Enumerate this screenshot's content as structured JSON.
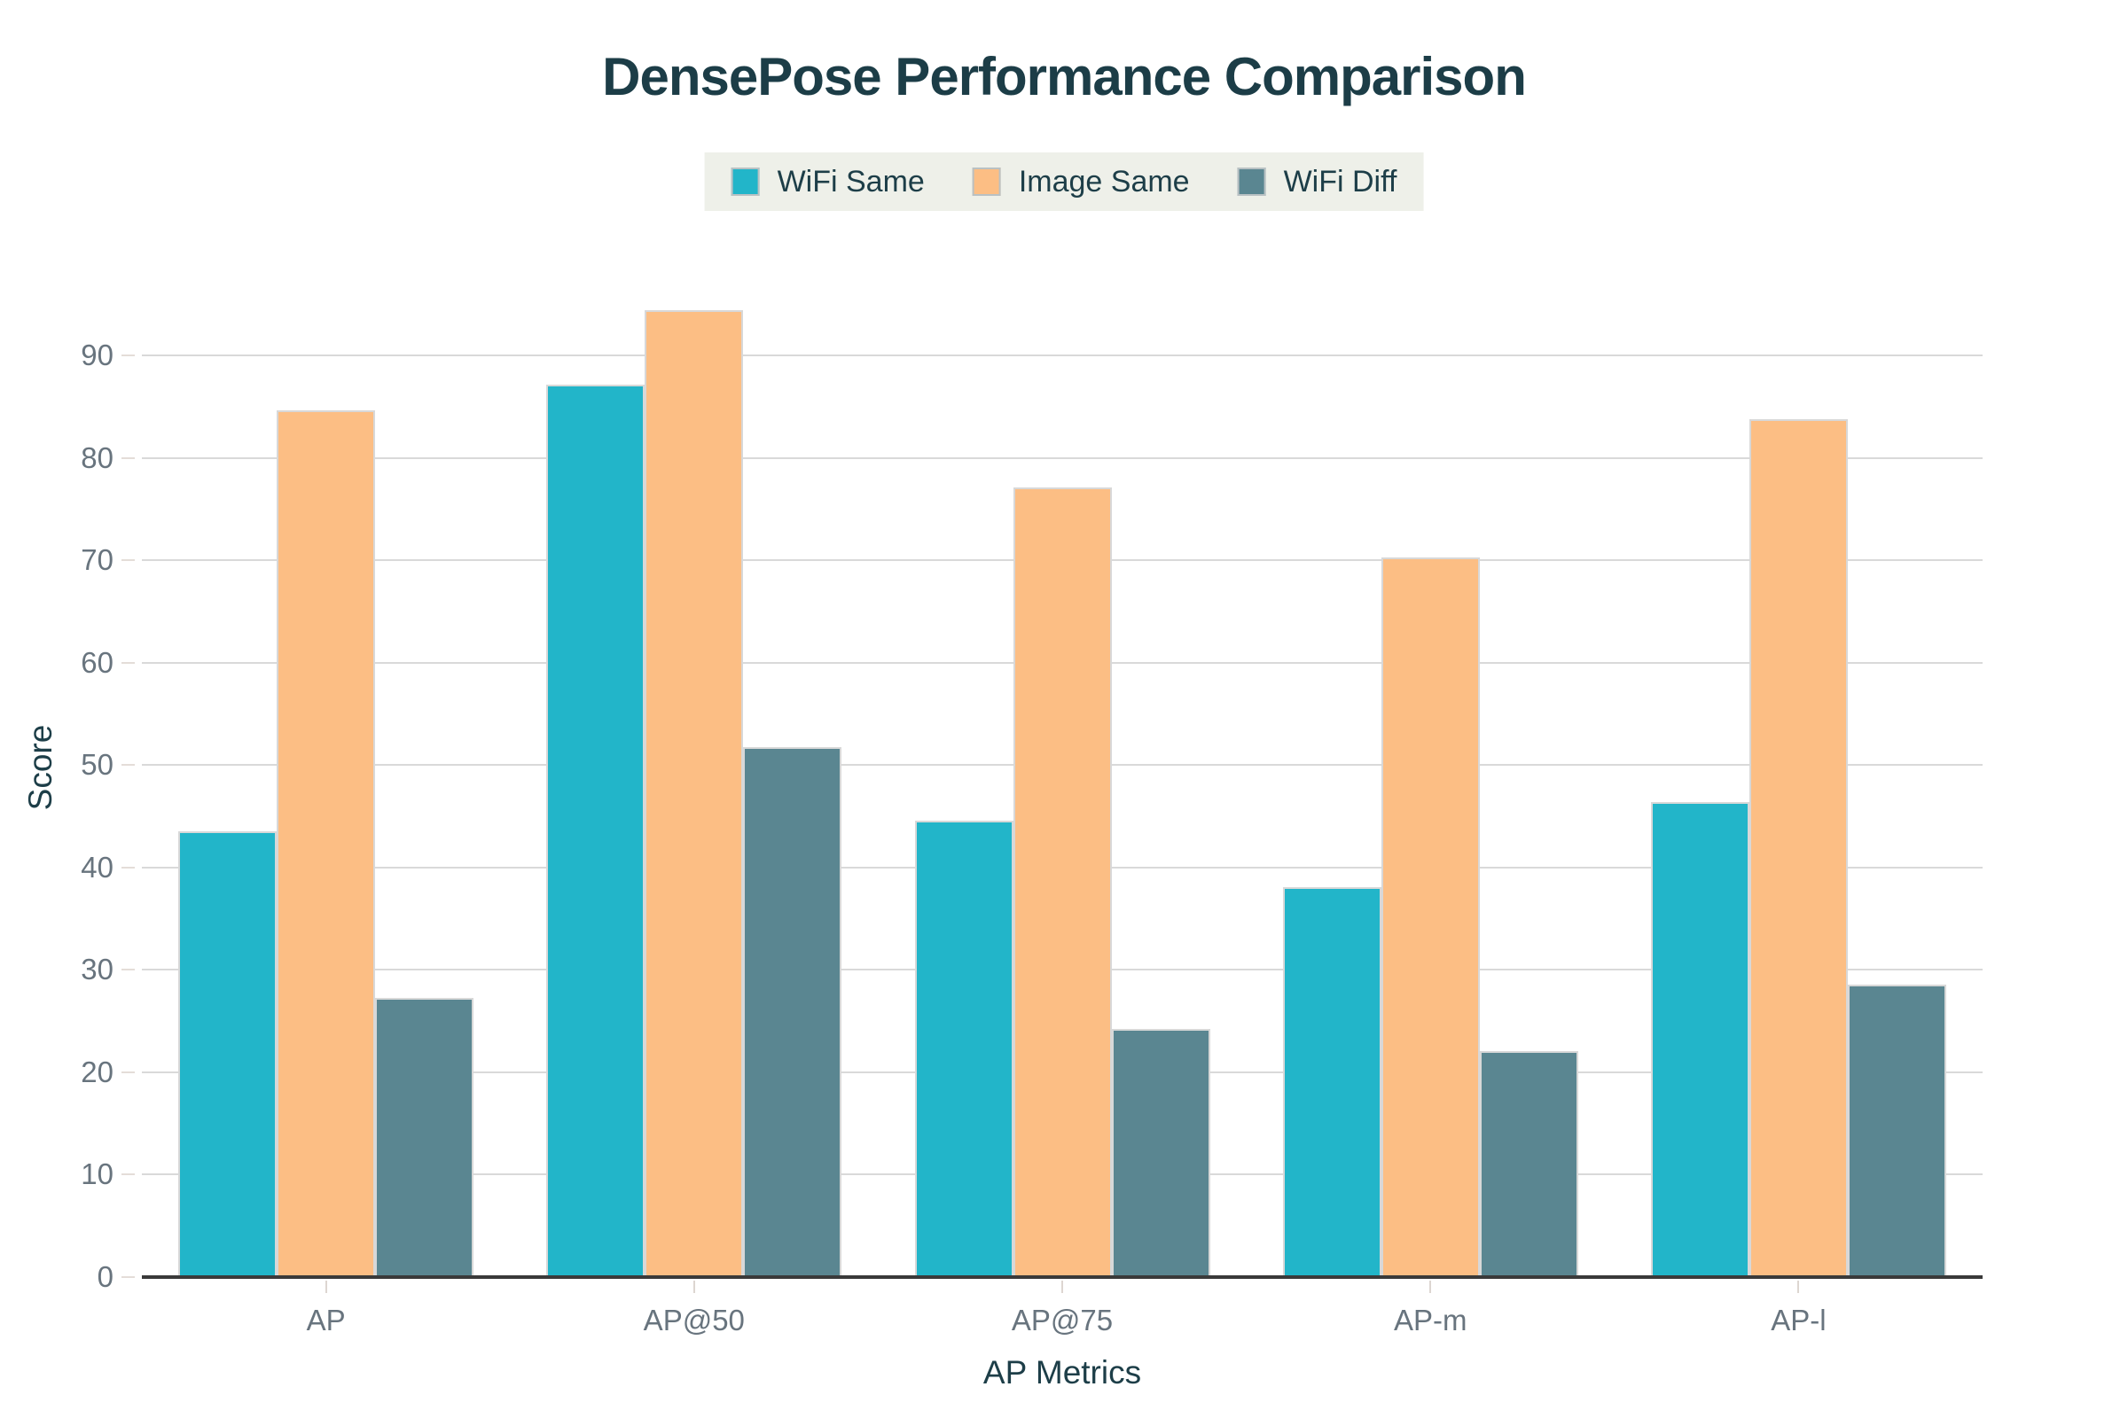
{
  "chart_data": {
    "type": "bar",
    "title": "DensePose Performance Comparison",
    "xlabel": "AP Metrics",
    "ylabel": "Score",
    "categories": [
      "AP",
      "AP@50",
      "AP@75",
      "AP-m",
      "AP-l"
    ],
    "series": [
      {
        "name": "WiFi Same",
        "color": "#22b5c9",
        "values": [
          43.5,
          87.2,
          44.6,
          38.1,
          46.4
        ]
      },
      {
        "name": "Image Same",
        "color": "#fcbe84",
        "values": [
          84.7,
          94.4,
          77.1,
          70.3,
          83.8
        ]
      },
      {
        "name": "WiFi Diff",
        "color": "#5a8691",
        "values": [
          27.3,
          51.8,
          24.2,
          22.1,
          28.6
        ]
      }
    ],
    "ylim": [
      0,
      96
    ],
    "yticks": [
      0,
      10,
      20,
      30,
      40,
      50,
      60,
      70,
      80,
      90
    ],
    "grid": true,
    "legend_position": "top-center"
  },
  "colors": {
    "title": "#1c3d47",
    "axis_title": "#1d3e48",
    "tick_label": "#68747e",
    "gridline": "#d9d9d9",
    "axis_line": "#3a3a3a",
    "legend_background": "#eef0e9",
    "bar_border": "#d8d8d8",
    "background": "#ffffff"
  }
}
